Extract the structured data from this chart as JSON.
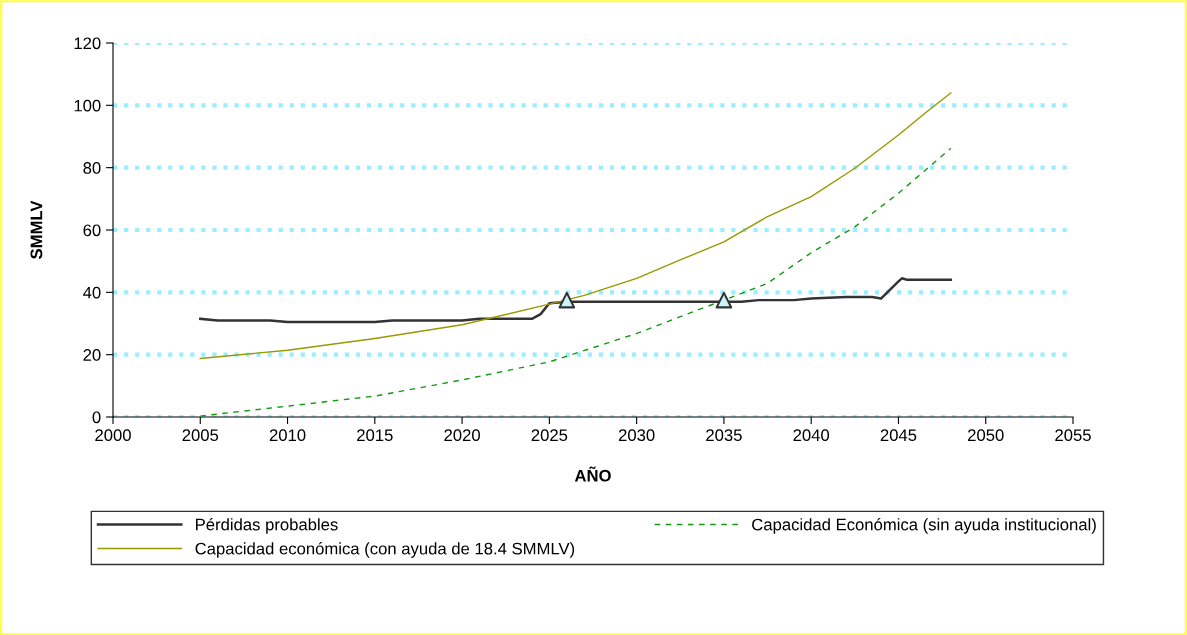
{
  "chart_data": {
    "type": "line",
    "xlabel": "AÑO",
    "ylabel": "SMMLV",
    "xlim": [
      2000,
      2055
    ],
    "xticks": [
      2000,
      2005,
      2010,
      2015,
      2020,
      2025,
      2030,
      2035,
      2040,
      2045,
      2050,
      2055
    ],
    "ylim": [
      0,
      120
    ],
    "yticks": [
      0,
      20,
      40,
      60,
      80,
      100,
      120
    ],
    "grid": "y",
    "legend": "bottom",
    "series": [
      {
        "name": "Pérdidas probables",
        "color": "#333333",
        "line_style": "solid",
        "marker": "none",
        "x": [
          2005,
          2006,
          2009,
          2010,
          2015,
          2016,
          2020,
          2021,
          2024,
          2024.5,
          2025,
          2026,
          2036,
          2037,
          2039,
          2040,
          2042,
          2043.5,
          2044,
          2045,
          2045.2,
          2045.5,
          2048
        ],
        "values": [
          31.5,
          31,
          31,
          30.5,
          30.5,
          31,
          31,
          31.5,
          31.5,
          33,
          36.5,
          37,
          37,
          37.5,
          37.5,
          38,
          38.5,
          38.5,
          38,
          43.5,
          44.5,
          44,
          44
        ]
      },
      {
        "name": "Capacidad Económica (sin ayuda institucional)",
        "color": "#119911",
        "line_style": "dashed",
        "marker": "none",
        "x": [
          2005,
          2010,
          2015,
          2020,
          2025,
          2026,
          2030,
          2032.5,
          2035,
          2037.5,
          2040,
          2042.5,
          2045,
          2048
        ],
        "values": [
          0.3,
          3.5,
          6.7,
          11.9,
          17.7,
          19.5,
          26.8,
          32.2,
          37.5,
          42.9,
          52.7,
          61,
          71.8,
          86.2
        ]
      },
      {
        "name": "Capacidad económica (con ayuda de 18.4 SMMLV)",
        "color": "#999900",
        "line_style": "solid",
        "marker": "none",
        "x": [
          2005,
          2010,
          2015,
          2020,
          2025,
          2027,
          2030,
          2032.5,
          2035,
          2037.5,
          2040,
          2042.5,
          2045,
          2046.5,
          2048
        ],
        "values": [
          18.8,
          21.4,
          25.2,
          29.6,
          36.2,
          39,
          44.5,
          50.4,
          56.2,
          64.3,
          70.7,
          79.8,
          90.5,
          97.4,
          104
        ]
      },
      {
        "type": "scatter",
        "color": "#c8f4fa",
        "marker": "triangle",
        "x": [
          2026,
          2035
        ],
        "values": [
          37.5,
          37.5
        ]
      }
    ]
  }
}
